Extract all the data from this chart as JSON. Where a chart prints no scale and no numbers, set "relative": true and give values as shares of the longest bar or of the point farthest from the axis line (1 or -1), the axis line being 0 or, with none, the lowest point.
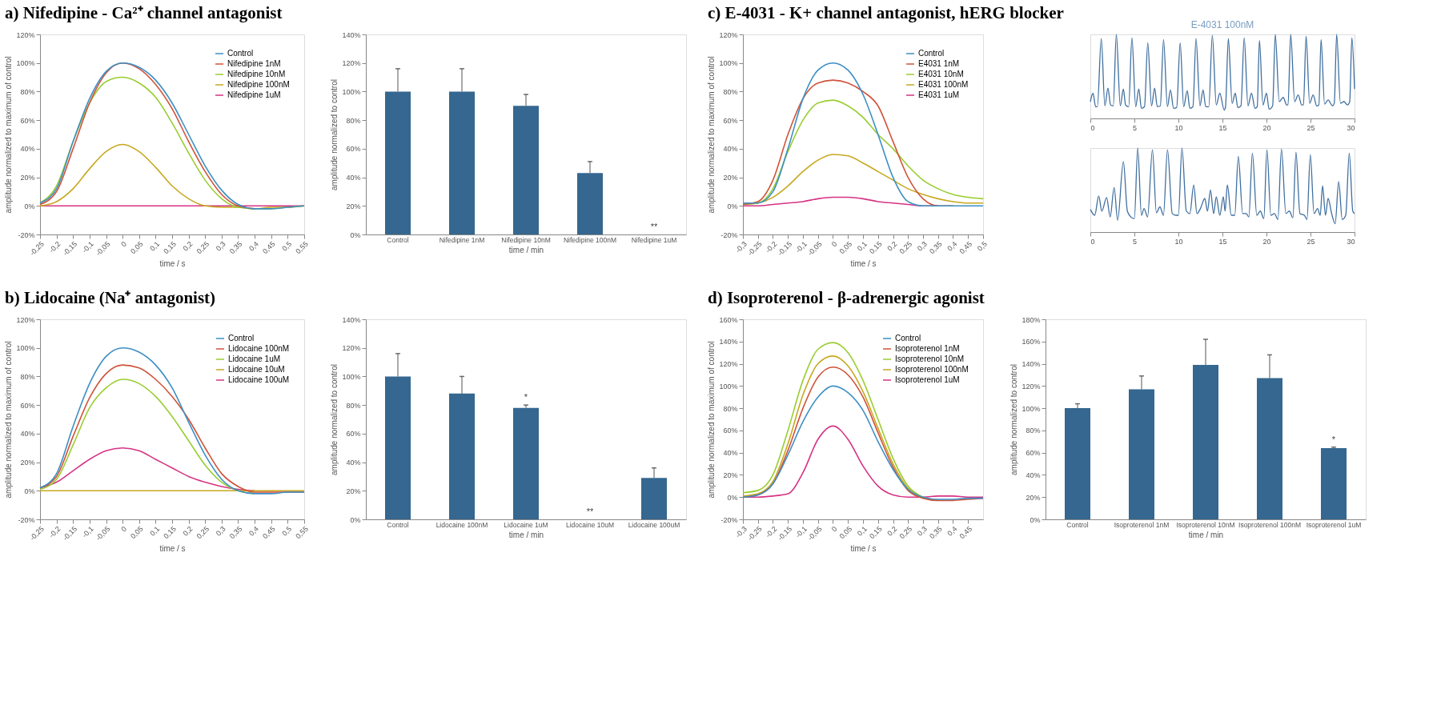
{
  "chart_data": [
    {
      "type": "line",
      "title": "a)  Nifedipine - Ca²⁺ channel antagonist",
      "xlabel": "time / s",
      "ylabel": "amplitude normalized to maximum of control",
      "legend": "top right",
      "x": [
        -0.25,
        -0.2,
        -0.15,
        -0.1,
        -0.05,
        0,
        0.05,
        0.1,
        0.15,
        0.2,
        0.25,
        0.3,
        0.35,
        0.4,
        0.45,
        0.5,
        0.55
      ],
      "xlim": [
        -0.25,
        0.55
      ],
      "xticks": [
        {
          "value": -0.25,
          "label": "-0,25"
        },
        {
          "value": -0.2,
          "label": "-0,2"
        },
        {
          "value": -0.15,
          "label": "-0,15"
        },
        {
          "value": -0.1,
          "label": "-0,1"
        },
        {
          "value": -0.05,
          "label": "-0,05"
        },
        0,
        {
          "value": 0.05,
          "label": "0,05"
        },
        {
          "value": 0.1,
          "label": "0,1"
        },
        {
          "value": 0.15,
          "label": "0,15"
        },
        {
          "value": 0.2,
          "label": "0,2"
        },
        {
          "value": 0.25,
          "label": "0,25"
        },
        {
          "value": 0.3,
          "label": "0,3"
        },
        {
          "value": 0.35,
          "label": "0,35"
        },
        {
          "value": 0.4,
          "label": "0,4"
        },
        {
          "value": 0.45,
          "label": "0,45"
        },
        {
          "value": 0.5,
          "label": "0,5"
        },
        {
          "value": 0.55,
          "label": "0,55"
        }
      ],
      "ylim": [
        -20,
        120
      ],
      "yticks": [
        {
          "value": -20,
          "label": "-20%"
        },
        {
          "value": 0,
          "label": "0%"
        },
        {
          "value": 20,
          "label": "20%"
        },
        {
          "value": 40,
          "label": "40%"
        },
        {
          "value": 60,
          "label": "60%"
        },
        {
          "value": 80,
          "label": "80%"
        },
        {
          "value": 100,
          "label": "100%"
        },
        {
          "value": 120,
          "label": "120%"
        }
      ],
      "series": [
        {
          "name": "Control",
          "color": "#3d8fc4",
          "values": [
            2,
            12,
            45,
            75,
            94,
            100,
            97,
            88,
            72,
            50,
            28,
            11,
            1,
            -2,
            -2,
            -1,
            0
          ]
        },
        {
          "name": "Nifedipine 1nM",
          "color": "#d0533a",
          "values": [
            1,
            10,
            40,
            72,
            93,
            100,
            96,
            85,
            68,
            45,
            24,
            8,
            0,
            -2,
            null,
            null,
            null
          ]
        },
        {
          "name": "Nifedipine 10nM",
          "color": "#9acd32",
          "values": [
            2,
            14,
            45,
            72,
            87,
            90,
            86,
            76,
            58,
            37,
            18,
            5,
            -1,
            -2,
            -2,
            -1,
            0
          ]
        },
        {
          "name": "Nifedipine 100nM",
          "color": "#c8a820",
          "values": [
            0,
            3,
            12,
            26,
            38,
            43,
            38,
            27,
            14,
            5,
            0,
            -1,
            -1,
            -2,
            -1,
            -1,
            0
          ]
        },
        {
          "name": "Nifedipine 1uM",
          "color": "#d63384",
          "values": [
            0,
            0,
            0,
            0,
            0,
            0,
            0,
            0,
            0,
            0,
            0,
            0,
            0,
            0,
            0,
            0,
            0
          ]
        }
      ]
    },
    {
      "type": "bar",
      "xlabel": "time / min",
      "ylabel": "amplitude normalized to control",
      "color": "#356790",
      "categories": [
        "Control",
        "Nifedipine 1nM",
        "Nifedipine 10nM",
        "Nifedipine 100nM",
        "Nifedipine 1uM"
      ],
      "values": [
        100,
        100,
        90,
        43,
        0
      ],
      "errors": [
        [
          100,
          116
        ],
        [
          100,
          116
        ],
        [
          90,
          98
        ],
        [
          43,
          51
        ],
        null
      ],
      "annotations": [
        {
          "text": "**",
          "x": "Nifedipine 1uM",
          "y": 0
        }
      ],
      "ylim": [
        0,
        140
      ],
      "yticks": [
        {
          "value": 0,
          "label": "0%"
        },
        {
          "value": 20,
          "label": "20%"
        },
        {
          "value": 40,
          "label": "40%"
        },
        {
          "value": 60,
          "label": "60%"
        },
        {
          "value": 80,
          "label": "80%"
        },
        {
          "value": 100,
          "label": "100%"
        },
        {
          "value": 120,
          "label": "120%"
        },
        {
          "value": 140,
          "label": "140%"
        }
      ]
    },
    {
      "type": "line",
      "title": "c)  E-4031 - K+ channel antagonist, hERG blocker",
      "xlabel": "time / s",
      "ylabel": "amplitude normalized to maximum of control",
      "legend": "top right",
      "x": [
        -0.3,
        -0.25,
        -0.2,
        -0.15,
        -0.1,
        -0.05,
        0,
        0.05,
        0.1,
        0.15,
        0.2,
        0.25,
        0.3,
        0.35,
        0.4,
        0.45,
        0.5
      ],
      "xlim": [
        -0.3,
        0.5
      ],
      "xticks": [
        {
          "value": -0.3,
          "label": "-0,3"
        },
        {
          "value": -0.25,
          "label": "-0,25"
        },
        {
          "value": -0.2,
          "label": "-0,2"
        },
        {
          "value": -0.15,
          "label": "-0,15"
        },
        {
          "value": -0.1,
          "label": "-0,1"
        },
        {
          "value": -0.05,
          "label": "-0,05"
        },
        0,
        {
          "value": 0.05,
          "label": "0,05"
        },
        {
          "value": 0.1,
          "label": "0,1"
        },
        {
          "value": 0.15,
          "label": "0,15"
        },
        {
          "value": 0.2,
          "label": "0,2"
        },
        {
          "value": 0.25,
          "label": "0,25"
        },
        {
          "value": 0.3,
          "label": "0,3"
        },
        {
          "value": 0.35,
          "label": "0,35"
        },
        {
          "value": 0.4,
          "label": "0,4"
        },
        {
          "value": 0.45,
          "label": "0,45"
        },
        {
          "value": 0.5,
          "label": "0,5"
        }
      ],
      "ylim": [
        -20,
        120
      ],
      "yticks": [
        {
          "value": -20,
          "label": "-20%"
        },
        {
          "value": 0,
          "label": "0%"
        },
        {
          "value": 20,
          "label": "20%"
        },
        {
          "value": 40,
          "label": "40%"
        },
        {
          "value": 60,
          "label": "60%"
        },
        {
          "value": 80,
          "label": "80%"
        },
        {
          "value": 100,
          "label": "100%"
        },
        {
          "value": 120,
          "label": "120%"
        }
      ],
      "series": [
        {
          "name": "Control",
          "color": "#3d8fc4",
          "values": [
            2,
            2,
            10,
            40,
            75,
            95,
            100,
            95,
            78,
            50,
            20,
            3,
            0,
            0,
            0,
            0,
            0
          ]
        },
        {
          "name": "E4031 1nM",
          "color": "#d0533a",
          "values": [
            1,
            3,
            18,
            50,
            75,
            86,
            88,
            86,
            80,
            70,
            45,
            20,
            5,
            0,
            0,
            null,
            null
          ]
        },
        {
          "name": "E4031 10nM",
          "color": "#9acd32",
          "values": [
            1,
            2,
            12,
            38,
            60,
            72,
            74,
            70,
            62,
            50,
            40,
            28,
            18,
            12,
            8,
            6,
            5
          ]
        },
        {
          "name": "E4031 100nM",
          "color": "#c8a820",
          "values": [
            1,
            2,
            6,
            14,
            24,
            32,
            36,
            35,
            30,
            24,
            18,
            12,
            8,
            5,
            3,
            2,
            2
          ]
        },
        {
          "name": "E4031 1uM",
          "color": "#d63384",
          "values": [
            0,
            0,
            1,
            2,
            3,
            5,
            6,
            6,
            5,
            3,
            2,
            1,
            0,
            0,
            null,
            null,
            null
          ]
        }
      ]
    },
    {
      "type": "line",
      "title": "E-4031 100nM",
      "relative": true,
      "xlim": [
        0,
        30
      ],
      "xticks": [
        0,
        5,
        10,
        15,
        20,
        25,
        30
      ],
      "x": [
        0,
        0.3,
        0.6,
        0.8,
        1.24,
        1.65,
        2.0,
        2.3,
        2.6,
        2.95,
        3.4,
        3.75,
        4.0,
        4.35,
        4.72,
        5.15,
        5.5,
        5.8,
        6.15,
        6.52,
        6.95,
        7.3,
        7.6,
        7.95,
        8.31,
        8.75,
        9.1,
        9.45,
        9.8,
        10.2,
        10.6,
        11.0,
        11.3,
        11.65,
        12.0,
        12.45,
        12.8,
        13.1,
        13.45,
        13.85,
        14.3,
        14.7,
        15.2,
        15.35,
        15.67,
        16.1,
        16.45,
        16.75,
        17.1,
        17.47,
        17.9,
        18.3,
        18.7,
        18.95,
        19.2,
        19.6,
        20.0,
        20.3,
        20.7,
        21.0,
        21.45,
        21.9,
        22.3,
        22.45,
        22.75,
        23.2,
        23.6,
        24.0,
        24.2,
        24.5,
        24.9,
        25.3,
        25.7,
        25.95,
        26.2,
        26.6,
        27.0,
        27.5,
        27.7,
        27.97,
        28.4,
        28.8,
        29.2,
        29.45,
        29.7,
        30
      ],
      "series": [
        {
          "color": "#3f6f9f",
          "values": [
            0.2,
            0.3,
            0.14,
            0.14,
            0.95,
            0.15,
            0.36,
            0.16,
            0.15,
            1.0,
            0.15,
            0.35,
            0.16,
            0.14,
            0.96,
            0.14,
            0.35,
            0.12,
            0.14,
            0.9,
            0.15,
            0.36,
            0.14,
            0.15,
            0.94,
            0.14,
            0.34,
            0.12,
            0.13,
            0.9,
            0.14,
            0.33,
            0.12,
            0.14,
            0.95,
            0.15,
            0.34,
            0.14,
            0.14,
            0.99,
            0.16,
            0.3,
            0.1,
            0.14,
            0.95,
            0.18,
            0.3,
            0.13,
            0.15,
            0.96,
            0.15,
            0.3,
            0.12,
            0.14,
            0.93,
            0.16,
            0.3,
            0.11,
            0.15,
            1.0,
            0.2,
            0.25,
            0.16,
            0.16,
            1.0,
            0.2,
            0.28,
            0.16,
            0.16,
            0.98,
            0.18,
            0.28,
            0.15,
            0.16,
            0.94,
            0.17,
            0.22,
            0.15,
            0.18,
            1.0,
            0.18,
            0.2,
            0.16,
            0.2,
            0.96,
            0.35
          ]
        }
      ]
    },
    {
      "type": "line",
      "relative": true,
      "xlim": [
        0,
        30
      ],
      "xticks": [
        0,
        5,
        10,
        15,
        20,
        25,
        30
      ],
      "x": [
        0,
        0.5,
        0.95,
        1.3,
        1.85,
        2.25,
        2.7,
        3.1,
        3.75,
        4.2,
        4.6,
        5.0,
        5.38,
        5.8,
        6.1,
        6.5,
        7.05,
        7.5,
        7.9,
        8.3,
        8.76,
        9.3,
        9.7,
        10.0,
        10.4,
        10.9,
        11.3,
        11.74,
        12.1,
        12.5,
        13.0,
        13.3,
        13.64,
        14.0,
        14.3,
        14.7,
        15.1,
        15.3,
        15.56,
        16.0,
        16.4,
        16.8,
        17.3,
        17.7,
        18.0,
        18.4,
        18.9,
        19.3,
        19.7,
        20.05,
        20.5,
        20.9,
        21.3,
        21.7,
        22.2,
        22.6,
        23.0,
        23.35,
        23.8,
        24.3,
        24.6,
        24.98,
        25.4,
        25.8,
        26.1,
        26.37,
        26.7,
        27.0,
        27.4,
        27.8,
        28.2,
        28.6,
        29.0,
        29.4,
        29.8,
        30
      ],
      "series": [
        {
          "color": "#3f6f9f",
          "values": [
            0.27,
            0.2,
            0.43,
            0.25,
            0.41,
            0.18,
            0.53,
            0.14,
            0.84,
            0.25,
            0.18,
            0.16,
            1.0,
            0.2,
            0.28,
            0.18,
            0.98,
            0.23,
            0.3,
            0.2,
            0.98,
            0.22,
            0.2,
            0.2,
            1.0,
            0.25,
            0.22,
            0.56,
            0.22,
            0.28,
            0.4,
            0.25,
            0.5,
            0.22,
            0.42,
            0.2,
            0.42,
            0.25,
            0.56,
            0.2,
            0.2,
            0.9,
            0.22,
            0.22,
            0.18,
            0.94,
            0.2,
            0.25,
            0.16,
            0.98,
            0.2,
            0.22,
            0.15,
            0.99,
            0.22,
            0.25,
            0.17,
            0.95,
            0.22,
            0.2,
            0.15,
            0.92,
            0.22,
            0.28,
            0.2,
            0.55,
            0.2,
            0.4,
            0.22,
            0.1,
            0.6,
            0.15,
            0.2,
            0.94,
            0.25,
            0.22
          ]
        }
      ]
    },
    {
      "type": "line",
      "title": "b)  Lidocaine (Na⁺ antagonist)",
      "xlabel": "time / s",
      "ylabel": "amplitude normalized to maximum of control",
      "legend": "top right",
      "x": [
        -0.25,
        -0.2,
        -0.15,
        -0.1,
        -0.05,
        0,
        0.05,
        0.1,
        0.15,
        0.2,
        0.25,
        0.3,
        0.35,
        0.4,
        0.45,
        0.5,
        0.55
      ],
      "xlim": [
        -0.25,
        0.55
      ],
      "xticks": [
        {
          "value": -0.25,
          "label": "-0,25"
        },
        {
          "value": -0.2,
          "label": "-0,2"
        },
        {
          "value": -0.15,
          "label": "-0,15"
        },
        {
          "value": -0.1,
          "label": "-0,1"
        },
        {
          "value": -0.05,
          "label": "-0,05"
        },
        0,
        {
          "value": 0.05,
          "label": "0,05"
        },
        {
          "value": 0.1,
          "label": "0,1"
        },
        {
          "value": 0.15,
          "label": "0,15"
        },
        {
          "value": 0.2,
          "label": "0,2"
        },
        {
          "value": 0.25,
          "label": "0,25"
        },
        {
          "value": 0.3,
          "label": "0,3"
        },
        {
          "value": 0.35,
          "label": "0,35"
        },
        {
          "value": 0.4,
          "label": "0,4"
        },
        {
          "value": 0.45,
          "label": "0,45"
        },
        {
          "value": 0.5,
          "label": "0,5"
        },
        {
          "value": 0.55,
          "label": "0,55"
        }
      ],
      "ylim": [
        -20,
        120
      ],
      "yticks": [
        {
          "value": -20,
          "label": "-20%"
        },
        {
          "value": 0,
          "label": "0%"
        },
        {
          "value": 20,
          "label": "20%"
        },
        {
          "value": 40,
          "label": "40%"
        },
        {
          "value": 60,
          "label": "60%"
        },
        {
          "value": 80,
          "label": "80%"
        },
        {
          "value": 100,
          "label": "100%"
        },
        {
          "value": 120,
          "label": "120%"
        }
      ],
      "series": [
        {
          "name": "Control",
          "color": "#3d8fc4",
          "values": [
            2,
            12,
            45,
            75,
            94,
            100,
            97,
            88,
            72,
            48,
            25,
            8,
            0,
            -2,
            -2,
            -1,
            -1
          ]
        },
        {
          "name": "Lidocaine 100nM",
          "color": "#d0533a",
          "values": [
            2,
            10,
            38,
            65,
            82,
            88,
            86,
            78,
            66,
            50,
            30,
            12,
            3,
            -1,
            -1,
            -1,
            -1
          ]
        },
        {
          "name": "Lidocaine 1uM",
          "color": "#9acd32",
          "values": [
            1,
            8,
            32,
            58,
            72,
            78,
            75,
            66,
            52,
            35,
            18,
            6,
            0,
            -2,
            null,
            null,
            null
          ]
        },
        {
          "name": "Lidocaine 10uM",
          "color": "#c8a820",
          "values": [
            0,
            0,
            0,
            0,
            0,
            0,
            0,
            0,
            0,
            0,
            0,
            0,
            0,
            0,
            0,
            0,
            0
          ]
        },
        {
          "name": "Lidocaine 100uM",
          "color": "#d63384",
          "values": [
            2,
            6,
            14,
            22,
            28,
            30,
            28,
            22,
            16,
            10,
            6,
            3,
            1,
            0,
            null,
            null,
            null
          ]
        }
      ]
    },
    {
      "type": "bar",
      "xlabel": "time / min",
      "ylabel": "amplitude normalized to control",
      "color": "#356790",
      "categories": [
        "Control",
        "Lidocaine 100nM",
        "Lidocaine 1uM",
        "Lidocaine 10uM",
        "Lidocaine 100uM"
      ],
      "values": [
        100,
        88,
        78,
        0,
        29
      ],
      "errors": [
        [
          100,
          116
        ],
        [
          88,
          100
        ],
        [
          78,
          80
        ],
        null,
        [
          29,
          36
        ]
      ],
      "annotations": [
        {
          "text": "*",
          "x": "Lidocaine 1uM",
          "y": 80
        },
        {
          "text": "**",
          "x": "Lidocaine 10uM",
          "y": 0
        }
      ],
      "ylim": [
        0,
        140
      ],
      "yticks": [
        {
          "value": 0,
          "label": "0%"
        },
        {
          "value": 20,
          "label": "20%"
        },
        {
          "value": 40,
          "label": "40%"
        },
        {
          "value": 60,
          "label": "60%"
        },
        {
          "value": 80,
          "label": "80%"
        },
        {
          "value": 100,
          "label": "100%"
        },
        {
          "value": 120,
          "label": "120%"
        },
        {
          "value": 140,
          "label": "140%"
        }
      ]
    },
    {
      "type": "line",
      "title": "d)  Isoproterenol - β-adrenergic agonist",
      "xlabel": "time / s",
      "ylabel": "amplitude normalized to maximum of control",
      "legend": "top right",
      "x": [
        -0.3,
        -0.25,
        -0.2,
        -0.15,
        -0.1,
        -0.05,
        0,
        0.05,
        0.1,
        0.15,
        0.2,
        0.25,
        0.3,
        0.35,
        0.4,
        0.45,
        0.5
      ],
      "xlim": [
        -0.3,
        0.5
      ],
      "xticks": [
        {
          "value": -0.3,
          "label": "-0,3"
        },
        {
          "value": -0.25,
          "label": "-0,25"
        },
        {
          "value": -0.2,
          "label": "-0,2"
        },
        {
          "value": -0.15,
          "label": "-0,15"
        },
        {
          "value": -0.1,
          "label": "-0,1"
        },
        {
          "value": -0.05,
          "label": "-0,05"
        },
        0,
        {
          "value": 0.05,
          "label": "0,05"
        },
        {
          "value": 0.1,
          "label": "0,1"
        },
        {
          "value": 0.15,
          "label": "0,15"
        },
        {
          "value": 0.2,
          "label": "0,2"
        },
        {
          "value": 0.25,
          "label": "0,25"
        },
        {
          "value": 0.3,
          "label": "0,3"
        },
        {
          "value": 0.35,
          "label": "0,35"
        },
        {
          "value": 0.4,
          "label": "0,4"
        },
        {
          "value": 0.45,
          "label": "0,45"
        }
      ],
      "ylim": [
        -20,
        160
      ],
      "yticks": [
        {
          "value": -20,
          "label": "-20%"
        },
        {
          "value": 0,
          "label": "0%"
        },
        {
          "value": 20,
          "label": "20%"
        },
        {
          "value": 40,
          "label": "40%"
        },
        {
          "value": 60,
          "label": "60%"
        },
        {
          "value": 80,
          "label": "80%"
        },
        {
          "value": 100,
          "label": "100%"
        },
        {
          "value": 120,
          "label": "120%"
        },
        {
          "value": 140,
          "label": "140%"
        },
        {
          "value": 160,
          "label": "160%"
        }
      ],
      "series": [
        {
          "name": "Control",
          "color": "#3d8fc4",
          "values": [
            0,
            2,
            12,
            38,
            68,
            90,
            100,
            94,
            78,
            50,
            25,
            7,
            0,
            -2,
            -2,
            -1,
            -1
          ]
        },
        {
          "name": "Isoproterenol 1nM",
          "color": "#d0533a",
          "values": [
            0,
            2,
            12,
            42,
            80,
            108,
            117,
            110,
            90,
            58,
            27,
            6,
            -1,
            -3,
            -3,
            -2,
            -1
          ]
        },
        {
          "name": "Isoproterenol 10nM",
          "color": "#9acd32",
          "values": [
            4,
            6,
            20,
            60,
            105,
            133,
            139,
            130,
            105,
            70,
            35,
            10,
            0,
            -3,
            null,
            null,
            null
          ]
        },
        {
          "name": "Isoproterenol 100nM",
          "color": "#c8a820",
          "values": [
            1,
            3,
            14,
            48,
            92,
            120,
            127,
            118,
            95,
            62,
            30,
            8,
            0,
            -3,
            null,
            null,
            null
          ]
        },
        {
          "name": "Isoproterenol 1uM",
          "color": "#d63384",
          "values": [
            0,
            0,
            1,
            3,
            22,
            52,
            64,
            52,
            28,
            10,
            2,
            0,
            0,
            1,
            1,
            0,
            0
          ]
        }
      ]
    },
    {
      "type": "bar",
      "xlabel": "time / min",
      "ylabel": "amplitude normalized to control",
      "color": "#356790",
      "categories": [
        "Control",
        "Isoproterenol 1nM",
        "Isoproterenol 10nM",
        "Isoproterenol 100nM",
        "Isoproterenol 1uM"
      ],
      "values": [
        100,
        117,
        139,
        127,
        64
      ],
      "errors": [
        [
          100,
          104
        ],
        [
          117,
          129
        ],
        [
          139,
          162
        ],
        [
          127,
          148
        ],
        [
          64,
          65
        ]
      ],
      "annotations": [
        {
          "text": "*",
          "x": "Isoproterenol 1uM",
          "y": 65
        }
      ],
      "ylim": [
        0,
        180
      ],
      "yticks": [
        {
          "value": 0,
          "label": "0%"
        },
        {
          "value": 20,
          "label": "20%"
        },
        {
          "value": 40,
          "label": "40%"
        },
        {
          "value": 60,
          "label": "60%"
        },
        {
          "value": 80,
          "label": "80%"
        },
        {
          "value": 100,
          "label": "100%"
        },
        {
          "value": 120,
          "label": "120%"
        },
        {
          "value": 140,
          "label": "140%"
        },
        {
          "value": 160,
          "label": "160%"
        },
        {
          "value": 180,
          "label": "180%"
        }
      ]
    }
  ]
}
